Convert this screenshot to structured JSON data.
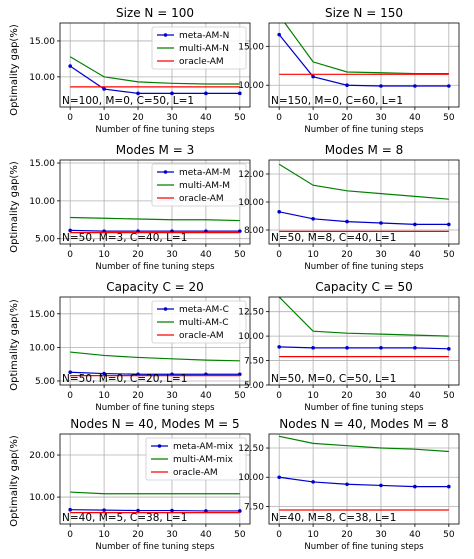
{
  "ylabel": "Optimality gap(%)",
  "chart_data": [
    {
      "type": "line",
      "title": "Size N = 100",
      "x": [
        0,
        10,
        20,
        30,
        40,
        50
      ],
      "xlabel": "Number of fine tuning steps",
      "ylabel": "Optimality gap(%)",
      "xlim": [
        -3,
        53
      ],
      "ylim": [
        5.8,
        17.5
      ],
      "yticks": [
        10,
        15
      ],
      "ytick_labels": [
        "10.00",
        "15.00"
      ],
      "xticks": [
        0,
        10,
        20,
        30,
        40,
        50
      ],
      "xtick_labels": [
        "0",
        "10",
        "20",
        "30",
        "40",
        "50"
      ],
      "annotation": "N=100, M=0, C=50, L=1",
      "legend": "top-right",
      "grid": true,
      "series": [
        {
          "name": "meta-AM-N",
          "color": "#0000cc",
          "marker": true,
          "values": [
            11.5,
            8.3,
            7.7,
            7.7,
            7.7,
            7.7
          ]
        },
        {
          "name": "multi-AM-N",
          "color": "#008000",
          "marker": false,
          "values": [
            12.8,
            10.0,
            9.3,
            9.1,
            9.0,
            9.0
          ]
        },
        {
          "name": "oracle-AM",
          "color": "#ff0000",
          "marker": false,
          "values": [
            8.6,
            8.6,
            8.6,
            8.6,
            8.6,
            8.6
          ]
        }
      ]
    },
    {
      "type": "line",
      "title": "Size N = 150",
      "x": [
        0,
        10,
        20,
        30,
        40,
        50
      ],
      "xlabel": "Number of fine tuning steps",
      "ylabel": "",
      "xlim": [
        -3,
        53
      ],
      "ylim": [
        7.2,
        18.0
      ],
      "yticks": [
        10,
        15
      ],
      "ytick_labels": [
        "10.00",
        "15.00"
      ],
      "xticks": [
        0,
        10,
        20,
        30,
        40,
        50
      ],
      "xtick_labels": [
        "0",
        "10",
        "20",
        "30",
        "40",
        "50"
      ],
      "annotation": "N=150, M=0, C=60, L=1",
      "legend": "none",
      "grid": true,
      "series": [
        {
          "name": "",
          "color": "#0000cc",
          "marker": true,
          "values": [
            16.5,
            11.1,
            10.0,
            9.9,
            9.9,
            9.9
          ]
        },
        {
          "name": "",
          "color": "#008000",
          "marker": false,
          "values": [
            19.0,
            13.0,
            11.7,
            11.6,
            11.5,
            11.5
          ]
        },
        {
          "name": "",
          "color": "#ff0000",
          "marker": false,
          "values": [
            11.4,
            11.4,
            11.4,
            11.4,
            11.4,
            11.4
          ]
        }
      ]
    },
    {
      "type": "line",
      "title": "Modes M = 3",
      "x": [
        0,
        10,
        20,
        30,
        40,
        50
      ],
      "xlabel": "Number of fine tuning steps",
      "ylabel": "Optimality gap(%)",
      "xlim": [
        -3,
        53
      ],
      "ylim": [
        4.3,
        15.4
      ],
      "yticks": [
        5,
        10,
        15
      ],
      "ytick_labels": [
        "5.00",
        "10.00",
        "15.00"
      ],
      "xticks": [
        0,
        10,
        20,
        30,
        40,
        50
      ],
      "xtick_labels": [
        "0",
        "10",
        "20",
        "30",
        "40",
        "50"
      ],
      "annotation": "N=50, M=3, C=40, L=1",
      "legend": "top-right",
      "grid": true,
      "series": [
        {
          "name": "meta-AM-M",
          "color": "#0000cc",
          "marker": true,
          "values": [
            6.1,
            6.0,
            6.0,
            6.0,
            6.0,
            6.0
          ]
        },
        {
          "name": "multi-AM-M",
          "color": "#008000",
          "marker": false,
          "values": [
            7.8,
            7.7,
            7.6,
            7.5,
            7.5,
            7.4
          ]
        },
        {
          "name": "oracle-AM",
          "color": "#ff0000",
          "marker": false,
          "values": [
            5.8,
            5.8,
            5.8,
            5.8,
            5.8,
            5.8
          ]
        }
      ]
    },
    {
      "type": "line",
      "title": "Modes M = 8",
      "x": [
        0,
        10,
        20,
        30,
        40,
        50
      ],
      "xlabel": "Number of fine tuning steps",
      "ylabel": "",
      "xlim": [
        -3,
        53
      ],
      "ylim": [
        7.0,
        13.0
      ],
      "yticks": [
        8,
        10,
        12
      ],
      "ytick_labels": [
        "8.00",
        "10.00",
        "12.00"
      ],
      "xticks": [
        0,
        10,
        20,
        30,
        40,
        50
      ],
      "xtick_labels": [
        "0",
        "10",
        "20",
        "30",
        "40",
        "50"
      ],
      "annotation": "N=50, M=8, C=40, L=1",
      "legend": "none",
      "grid": true,
      "series": [
        {
          "name": "",
          "color": "#0000cc",
          "marker": true,
          "values": [
            9.3,
            8.8,
            8.6,
            8.5,
            8.4,
            8.4
          ]
        },
        {
          "name": "",
          "color": "#008000",
          "marker": false,
          "values": [
            12.7,
            11.2,
            10.8,
            10.6,
            10.4,
            10.2
          ]
        },
        {
          "name": "",
          "color": "#ff0000",
          "marker": false,
          "values": [
            7.9,
            7.9,
            7.9,
            7.9,
            7.9,
            7.9
          ]
        }
      ]
    },
    {
      "type": "line",
      "title": "Capacity C = 20",
      "x": [
        0,
        10,
        20,
        30,
        40,
        50
      ],
      "xlabel": "Number of fine tuning steps",
      "ylabel": "Optimality gap(%)",
      "xlim": [
        -3,
        53
      ],
      "ylim": [
        4.4,
        17.5
      ],
      "yticks": [
        5,
        10,
        15
      ],
      "ytick_labels": [
        "5.00",
        "10.00",
        "15.00"
      ],
      "xticks": [
        0,
        10,
        20,
        30,
        40,
        50
      ],
      "xtick_labels": [
        "0",
        "10",
        "20",
        "30",
        "40",
        "50"
      ],
      "annotation": "N=50, M=0, C=20, L=1",
      "legend": "top-right",
      "grid": true,
      "series": [
        {
          "name": "meta-AM-C",
          "color": "#0000cc",
          "marker": true,
          "values": [
            6.3,
            6.1,
            6.0,
            6.0,
            6.0,
            6.0
          ]
        },
        {
          "name": "multi-AM-C",
          "color": "#008000",
          "marker": false,
          "values": [
            9.3,
            8.8,
            8.5,
            8.3,
            8.1,
            8.0
          ]
        },
        {
          "name": "oracle-AM",
          "color": "#ff0000",
          "marker": false,
          "values": [
            5.8,
            5.8,
            5.8,
            5.8,
            5.8,
            5.8
          ]
        }
      ]
    },
    {
      "type": "line",
      "title": "Capacity C = 50",
      "x": [
        0,
        10,
        20,
        30,
        40,
        50
      ],
      "xlabel": "Number of fine tuning steps",
      "ylabel": "",
      "xlim": [
        -3,
        53
      ],
      "ylim": [
        5.0,
        14.0
      ],
      "yticks": [
        5,
        7.5,
        10,
        12.5
      ],
      "ytick_labels": [
        "5.00",
        "7.50",
        "10.00",
        "12.50"
      ],
      "xticks": [
        0,
        10,
        20,
        30,
        40,
        50
      ],
      "xtick_labels": [
        "0",
        "10",
        "20",
        "30",
        "40",
        "50"
      ],
      "annotation": "N=50, M=0, C=50, L=1",
      "legend": "none",
      "grid": true,
      "series": [
        {
          "name": "",
          "color": "#0000cc",
          "marker": true,
          "values": [
            8.9,
            8.8,
            8.8,
            8.8,
            8.8,
            8.7
          ]
        },
        {
          "name": "",
          "color": "#008000",
          "marker": false,
          "values": [
            14.0,
            10.5,
            10.3,
            10.2,
            10.1,
            10.0
          ]
        },
        {
          "name": "",
          "color": "#ff0000",
          "marker": false,
          "values": [
            7.9,
            7.9,
            7.9,
            7.9,
            7.9,
            7.9
          ]
        }
      ]
    },
    {
      "type": "line",
      "title": "Nodes N = 40, Modes M = 5",
      "x": [
        0,
        10,
        20,
        30,
        40,
        50
      ],
      "xlabel": "Number of fine tuning steps",
      "ylabel": "Optimality gap(%)",
      "xlim": [
        -3,
        53
      ],
      "ylim": [
        3.6,
        25.0
      ],
      "yticks": [
        10,
        20
      ],
      "ytick_labels": [
        "10.00",
        "20.00"
      ],
      "xticks": [
        0,
        10,
        20,
        30,
        40,
        50
      ],
      "xtick_labels": [
        "0",
        "10",
        "20",
        "30",
        "40",
        "50"
      ],
      "annotation": "N=40, M=5, C=38, L=1",
      "legend": "top-right",
      "grid": true,
      "series": [
        {
          "name": "meta-AM-mix",
          "color": "#0000cc",
          "marker": true,
          "values": [
            7.0,
            6.9,
            6.8,
            6.8,
            6.7,
            6.7
          ]
        },
        {
          "name": "multi-AM-mix",
          "color": "#008000",
          "marker": false,
          "values": [
            11.2,
            10.8,
            10.8,
            10.8,
            10.8,
            10.8
          ]
        },
        {
          "name": "oracle-AM",
          "color": "#ff0000",
          "marker": false,
          "values": [
            6.3,
            6.3,
            6.3,
            6.3,
            6.3,
            6.3
          ]
        }
      ]
    },
    {
      "type": "line",
      "title": "Nodes N = 40, Modes M = 8",
      "x": [
        0,
        10,
        20,
        30,
        40,
        50
      ],
      "xlabel": "Number of fine tuning steps",
      "ylabel": "",
      "xlim": [
        -3,
        53
      ],
      "ylim": [
        6.0,
        13.7
      ],
      "yticks": [
        7.5,
        10,
        12.5
      ],
      "ytick_labels": [
        "7.50",
        "10.00",
        "12.50"
      ],
      "xticks": [
        0,
        10,
        20,
        30,
        40,
        50
      ],
      "xtick_labels": [
        "0",
        "10",
        "20",
        "30",
        "40",
        "50"
      ],
      "annotation": "N=40, M=8, C=38, L=1",
      "legend": "none",
      "grid": true,
      "series": [
        {
          "name": "",
          "color": "#0000cc",
          "marker": true,
          "values": [
            10.0,
            9.6,
            9.4,
            9.3,
            9.2,
            9.2
          ]
        },
        {
          "name": "",
          "color": "#008000",
          "marker": false,
          "values": [
            13.5,
            12.9,
            12.7,
            12.5,
            12.4,
            12.2
          ]
        },
        {
          "name": "",
          "color": "#ff0000",
          "marker": false,
          "values": [
            7.2,
            7.2,
            7.2,
            7.2,
            7.2,
            7.2
          ]
        }
      ]
    }
  ]
}
